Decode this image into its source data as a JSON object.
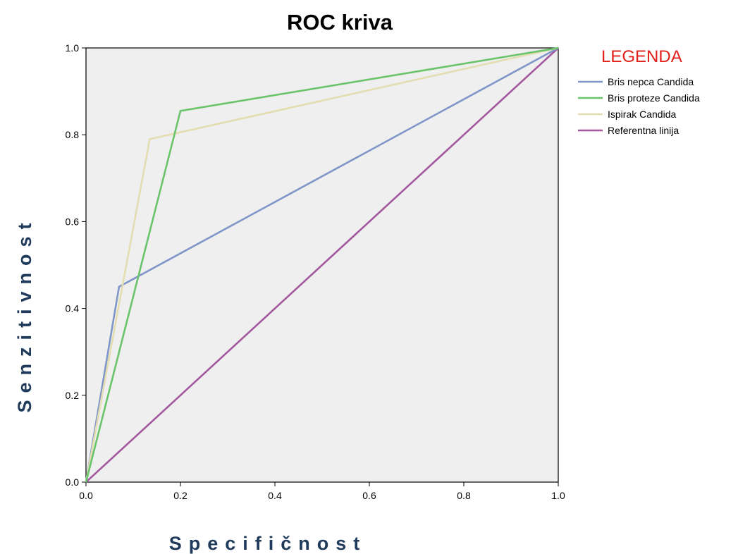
{
  "chart_data": {
    "type": "line",
    "title": "ROC kriva",
    "xlabel": "Specifičnost",
    "ylabel": "Senzitivnost",
    "xlim": [
      0,
      1
    ],
    "ylim": [
      0,
      1
    ],
    "x_ticks": [
      "0.0",
      "0.2",
      "0.4",
      "0.6",
      "0.8",
      "1.0"
    ],
    "y_ticks": [
      "0.0",
      "0.2",
      "0.4",
      "0.6",
      "0.8",
      "1.0"
    ],
    "grid": false,
    "legend_title": "LEGENDA",
    "legend_position": "right",
    "series": [
      {
        "name": "Bris nepca Candida",
        "color": "#7f96c9",
        "points": [
          [
            0,
            0
          ],
          [
            0.07,
            0.45
          ],
          [
            1,
            1
          ]
        ]
      },
      {
        "name": "Bris proteze Candida",
        "color": "#6ac46b",
        "points": [
          [
            0,
            0
          ],
          [
            0.2,
            0.855
          ],
          [
            1,
            1
          ]
        ]
      },
      {
        "name": "Ispirak Candida",
        "color": "#e3ddb1",
        "points": [
          [
            0,
            0
          ],
          [
            0.135,
            0.79
          ],
          [
            1,
            1
          ]
        ]
      },
      {
        "name": "Referentna linija",
        "color": "#a3579e",
        "points": [
          [
            0,
            0
          ],
          [
            1,
            1
          ]
        ]
      }
    ],
    "plot_background": "#efefef"
  }
}
